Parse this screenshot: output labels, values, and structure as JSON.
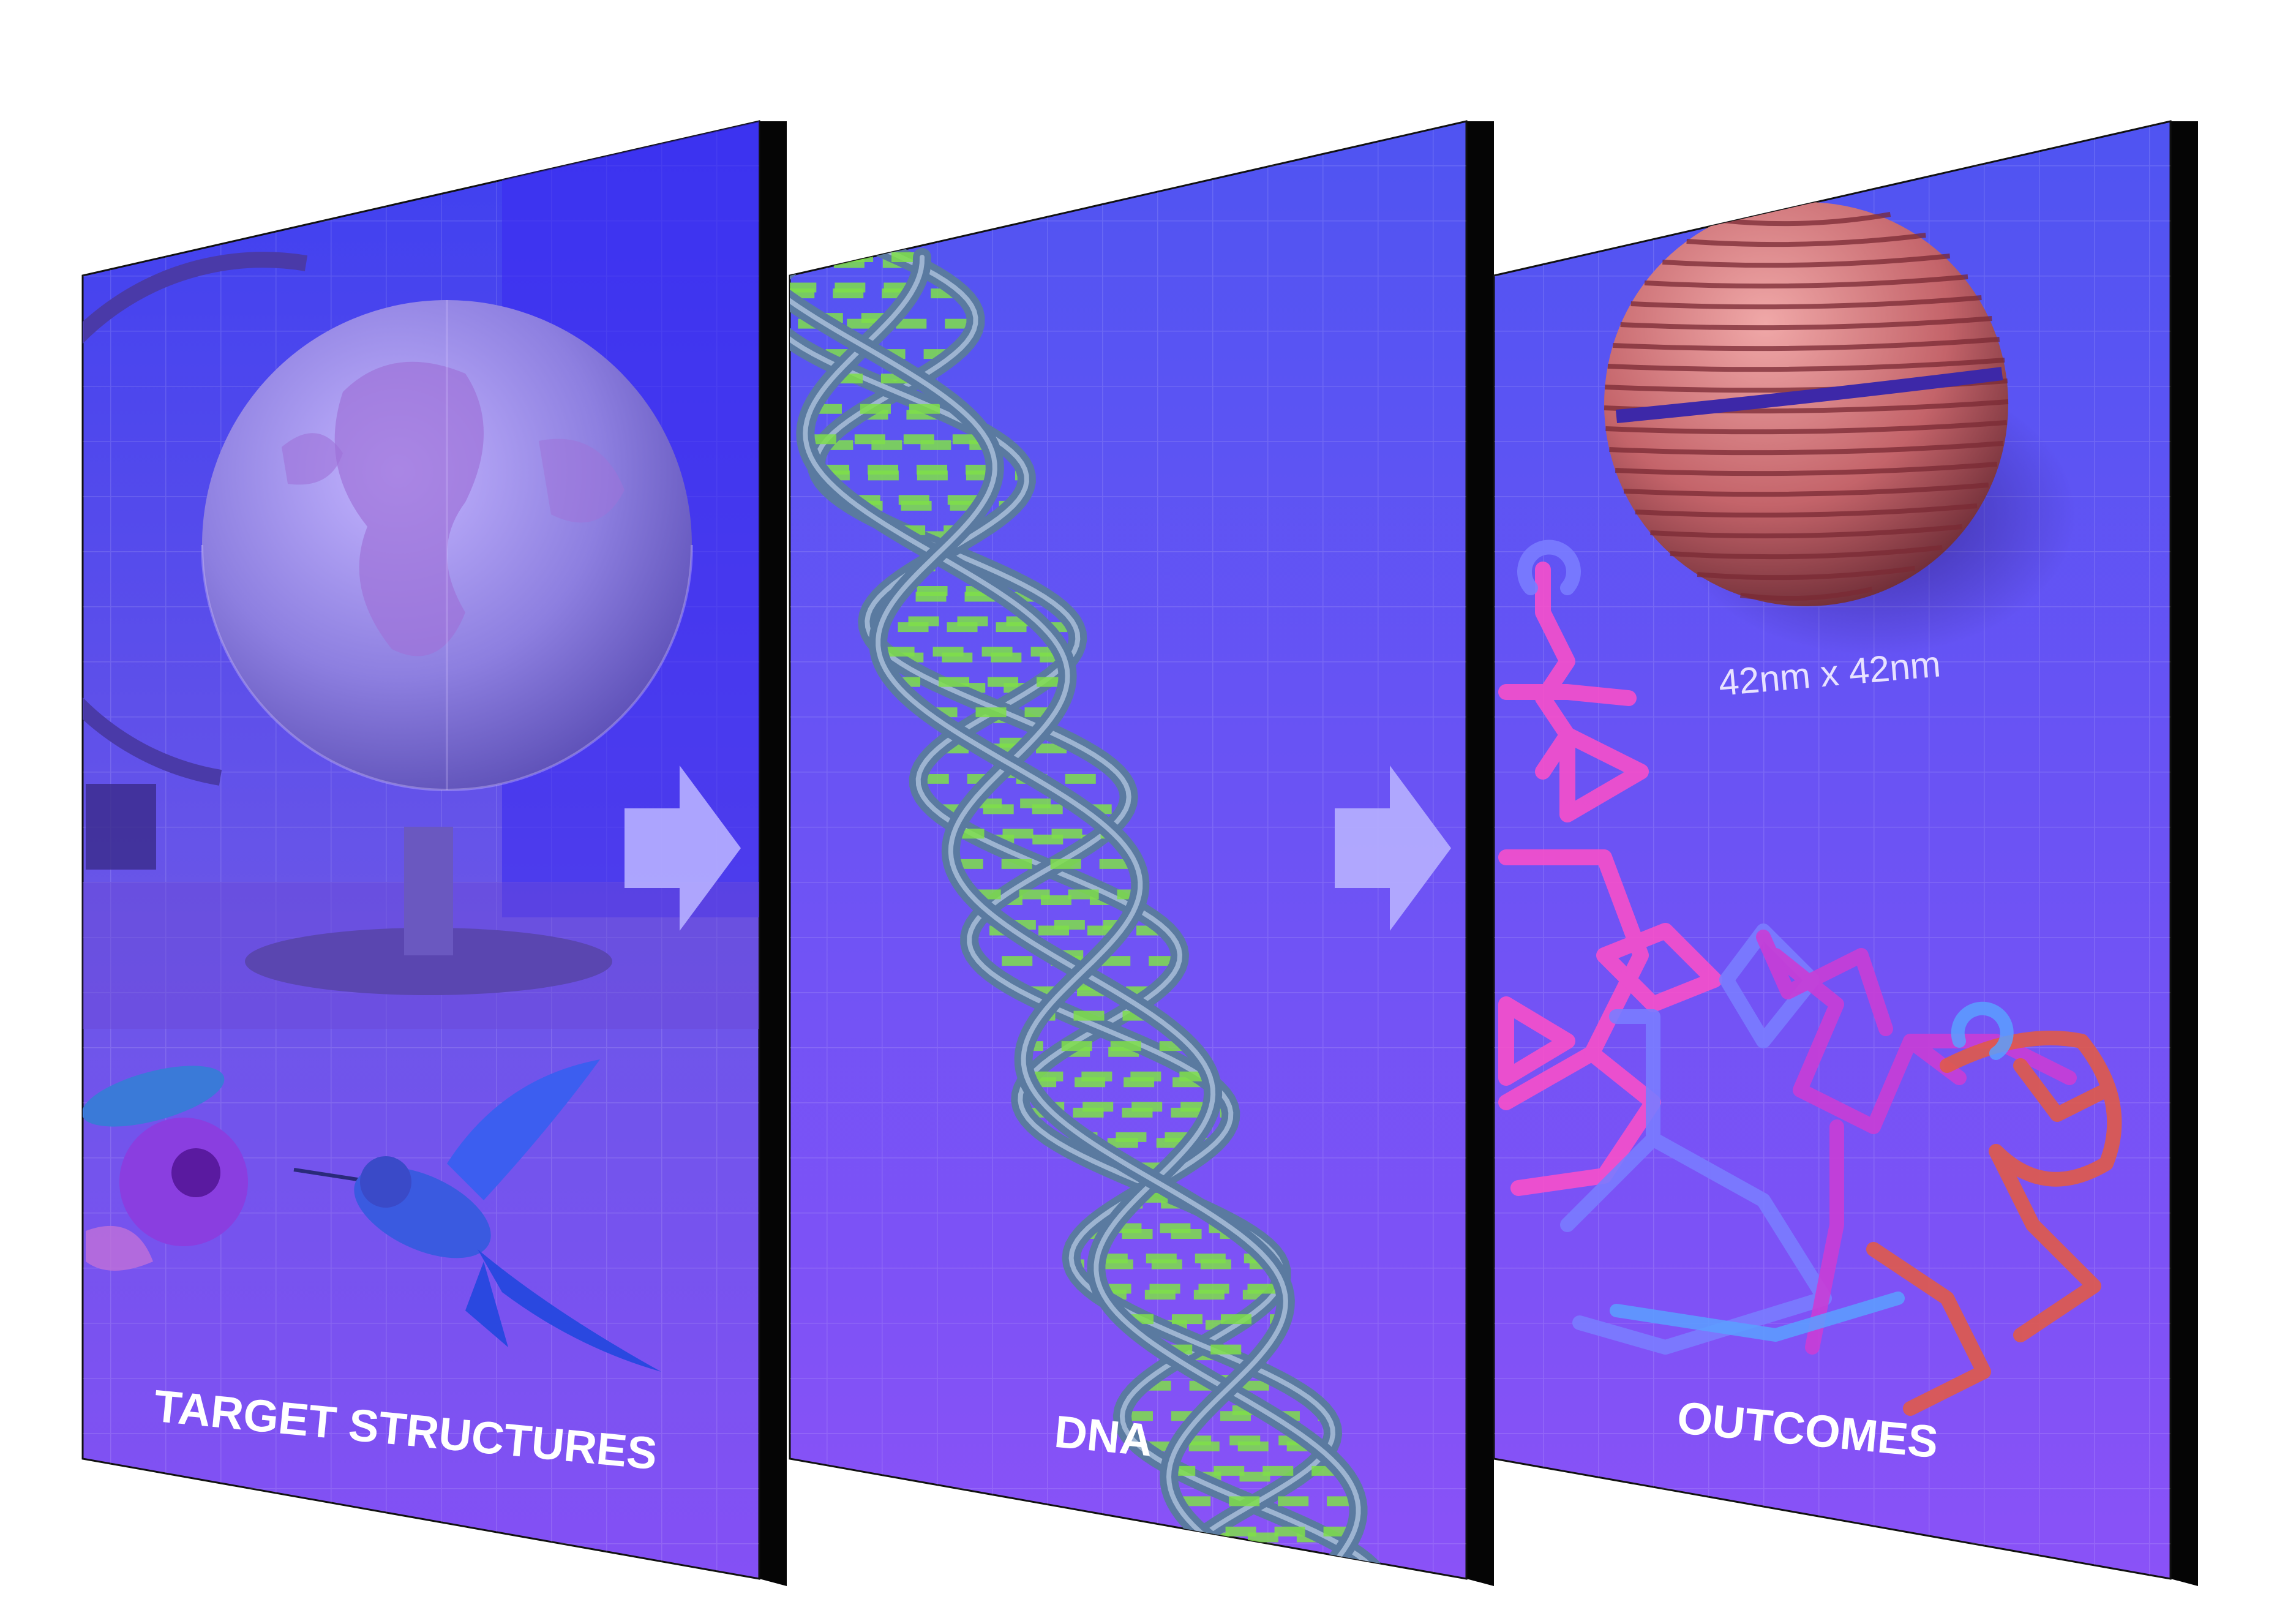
{
  "panels": [
    {
      "id": "target",
      "caption": "TARGET STRUCTURES"
    },
    {
      "id": "dna",
      "caption": "DNA"
    },
    {
      "id": "outcomes",
      "caption": "OUTCOMES",
      "sphere_dimension": "42nm x 42nm"
    }
  ],
  "arrows": [
    "arrow-right-icon",
    "arrow-right-icon"
  ],
  "colors": {
    "panel_top": "#4f54f2",
    "panel_bottom": "#8250f5",
    "edge": "#050505",
    "dna_rung": "#7fe04a",
    "dna_strand": "#5a7aa0",
    "sphere": "#c46a6e",
    "arrow": "#b7b0ff"
  }
}
